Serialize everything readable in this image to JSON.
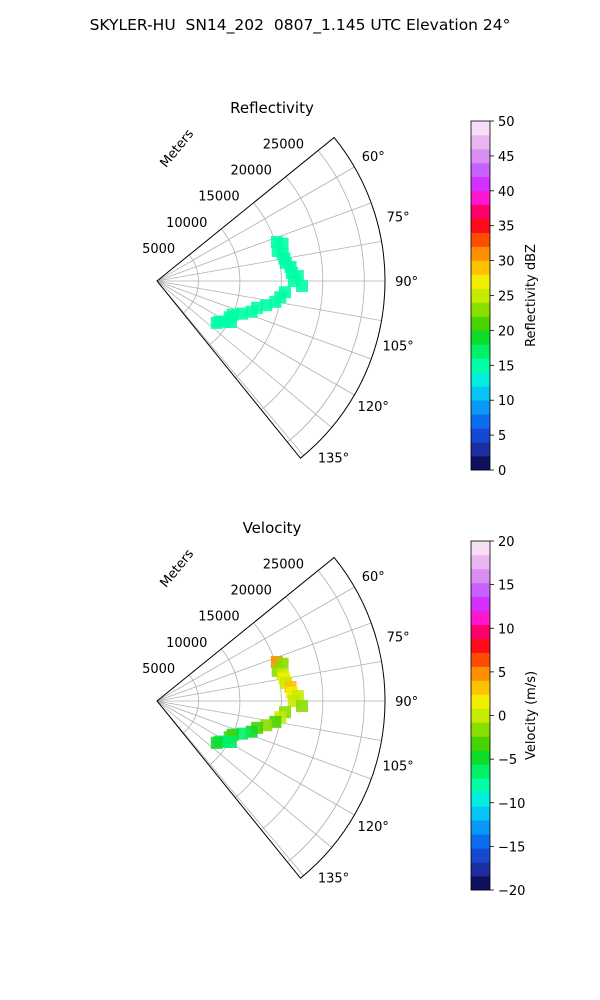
{
  "figure_title": "SKYLER-HU  SN14_202  0807_1.145 UTC Elevation 24°",
  "chart_data": [
    {
      "type": "heatmap",
      "projection": "polar-sector",
      "title": "Reflectivity",
      "radial_label": "Meters",
      "radial_ticks": [
        "5000",
        "10000",
        "15000",
        "20000",
        "25000"
      ],
      "radial_tick_values": [
        5000,
        10000,
        15000,
        20000,
        25000
      ],
      "rlim": [
        0,
        27500
      ],
      "angle_ticks": [
        "60°",
        "75°",
        "90°",
        "105°",
        "120°",
        "135°"
      ],
      "angle_tick_values": [
        60,
        75,
        90,
        105,
        120,
        135
      ],
      "theta_range": [
        51,
        141
      ],
      "theta_grid_step": 10,
      "grid": true,
      "colorbar": {
        "label": "Reflectivity dBZ",
        "range": [
          0,
          50
        ],
        "tick_labels": [
          "0",
          "5",
          "10",
          "15",
          "20",
          "25",
          "30",
          "35",
          "40",
          "45",
          "50"
        ],
        "tick_values": [
          0,
          5,
          10,
          15,
          20,
          25,
          30,
          35,
          40,
          45,
          50
        ],
        "colors": [
          "#10115e",
          "#1d2ea0",
          "#1549d4",
          "#0d6df0",
          "#0898f8",
          "#06c4f4",
          "#02eede",
          "#00ffa5",
          "#00f06a",
          "#0ddd2a",
          "#47d400",
          "#8ade00",
          "#c6ea00",
          "#f3ee00",
          "#ffc200",
          "#ff8f00",
          "#ff4d00",
          "#ff0c1c",
          "#ff006b",
          "#ff17cf",
          "#d230ff",
          "#c660ff",
          "#d88ef2",
          "#eab6f2",
          "#f7def7"
        ]
      },
      "cells": [
        {
          "theta": 72.0,
          "r": 15200,
          "value": 14
        },
        {
          "theta": 73.5,
          "r": 15800,
          "value": 15
        },
        {
          "theta": 76.0,
          "r": 15000,
          "value": 14
        },
        {
          "theta": 78.0,
          "r": 15500,
          "value": 15
        },
        {
          "theta": 80.0,
          "r": 15600,
          "value": 15
        },
        {
          "theta": 82.0,
          "r": 15700,
          "value": 14
        },
        {
          "theta": 84.0,
          "r": 16200,
          "value": 15
        },
        {
          "theta": 86.5,
          "r": 16300,
          "value": 15
        },
        {
          "theta": 88.0,
          "r": 17000,
          "value": 14
        },
        {
          "theta": 90.0,
          "r": 16500,
          "value": 14
        },
        {
          "theta": 92.0,
          "r": 17500,
          "value": 15
        },
        {
          "theta": 95.0,
          "r": 15500,
          "value": 14
        },
        {
          "theta": 97.5,
          "r": 15000,
          "value": 14
        },
        {
          "theta": 100.0,
          "r": 14500,
          "value": 15
        },
        {
          "theta": 102.5,
          "r": 13500,
          "value": 14
        },
        {
          "theta": 105.0,
          "r": 12500,
          "value": 15
        },
        {
          "theta": 108.0,
          "r": 12000,
          "value": 14
        },
        {
          "theta": 111.0,
          "r": 11000,
          "value": 15
        },
        {
          "theta": 114.0,
          "r": 10000,
          "value": 14
        },
        {
          "theta": 116.5,
          "r": 9800,
          "value": 15
        },
        {
          "theta": 119.0,
          "r": 10200,
          "value": 14
        },
        {
          "theta": 121.0,
          "r": 9500,
          "value": 15
        },
        {
          "theta": 123.0,
          "r": 9000,
          "value": 14
        },
        {
          "theta": 125.0,
          "r": 8800,
          "value": 15
        }
      ]
    },
    {
      "type": "heatmap",
      "projection": "polar-sector",
      "title": "Velocity",
      "radial_label": "Meters",
      "radial_ticks": [
        "5000",
        "10000",
        "15000",
        "20000",
        "25000"
      ],
      "radial_tick_values": [
        5000,
        10000,
        15000,
        20000,
        25000
      ],
      "rlim": [
        0,
        27500
      ],
      "angle_ticks": [
        "60°",
        "75°",
        "90°",
        "105°",
        "120°",
        "135°"
      ],
      "angle_tick_values": [
        60,
        75,
        90,
        105,
        120,
        135
      ],
      "theta_range": [
        51,
        141
      ],
      "theta_grid_step": 10,
      "grid": true,
      "colorbar": {
        "label": "Velocity (m/s)",
        "range": [
          -20,
          20
        ],
        "tick_labels": [
          "−20",
          "−15",
          "−10",
          "−5",
          "0",
          "5",
          "10",
          "15",
          "20"
        ],
        "tick_values": [
          -20,
          -15,
          -10,
          -5,
          0,
          5,
          10,
          15,
          20
        ],
        "colors": [
          "#10115e",
          "#1d2ea0",
          "#1549d4",
          "#0d6df0",
          "#0898f8",
          "#06c4f4",
          "#02eede",
          "#00ffa5",
          "#00f06a",
          "#0ddd2a",
          "#47d400",
          "#8ade00",
          "#c6ea00",
          "#f3ee00",
          "#ffc200",
          "#ff8f00",
          "#ff4d00",
          "#ff0c1c",
          "#ff006b",
          "#ff17cf",
          "#d230ff",
          "#c660ff",
          "#d88ef2",
          "#eab6f2",
          "#f7def7"
        ]
      },
      "cells": [
        {
          "theta": 72.0,
          "r": 15200,
          "value": 5
        },
        {
          "theta": 73.5,
          "r": 15800,
          "value": -1
        },
        {
          "theta": 76.0,
          "r": 15000,
          "value": -2
        },
        {
          "theta": 78.0,
          "r": 15500,
          "value": 0
        },
        {
          "theta": 80.0,
          "r": 15600,
          "value": 1
        },
        {
          "theta": 82.0,
          "r": 15700,
          "value": 0
        },
        {
          "theta": 84.0,
          "r": 16200,
          "value": 3
        },
        {
          "theta": 86.5,
          "r": 16300,
          "value": 2
        },
        {
          "theta": 88.0,
          "r": 17000,
          "value": 0
        },
        {
          "theta": 90.0,
          "r": 16500,
          "value": 0
        },
        {
          "theta": 92.0,
          "r": 17500,
          "value": -1
        },
        {
          "theta": 95.0,
          "r": 15500,
          "value": -2
        },
        {
          "theta": 97.5,
          "r": 15000,
          "value": 0
        },
        {
          "theta": 100.0,
          "r": 14500,
          "value": -3
        },
        {
          "theta": 102.5,
          "r": 13500,
          "value": -1
        },
        {
          "theta": 105.0,
          "r": 12500,
          "value": -4
        },
        {
          "theta": 108.0,
          "r": 12000,
          "value": -5
        },
        {
          "theta": 111.0,
          "r": 11000,
          "value": -6
        },
        {
          "theta": 114.0,
          "r": 10000,
          "value": -5
        },
        {
          "theta": 116.5,
          "r": 9800,
          "value": -4
        },
        {
          "theta": 119.0,
          "r": 10200,
          "value": -6
        },
        {
          "theta": 121.0,
          "r": 9500,
          "value": -7
        },
        {
          "theta": 123.0,
          "r": 9000,
          "value": -6
        },
        {
          "theta": 125.0,
          "r": 8800,
          "value": -5
        }
      ]
    }
  ]
}
